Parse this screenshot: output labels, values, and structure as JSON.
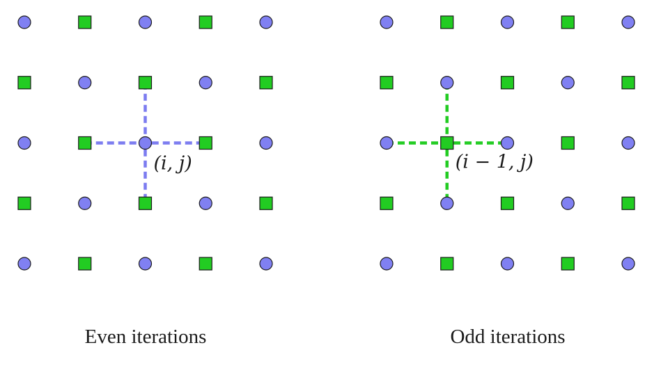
{
  "colors": {
    "circle": "#8080f2",
    "square": "#22cc22",
    "outline": "#1a1a1a",
    "even_stencil": "#7c7cf0",
    "odd_stencil": "#22cc22"
  },
  "panels": [
    {
      "caption": "Even iterations",
      "highlight_label": "(i, j)",
      "grid_size": 5,
      "center_node": {
        "row": 2,
        "col": 2
      },
      "stencil_color_key": "even_stencil",
      "first_cell_shape": "circle"
    },
    {
      "caption": "Odd iterations",
      "highlight_label": "(i − 1, j)",
      "grid_size": 5,
      "center_node": {
        "row": 2,
        "col": 1
      },
      "stencil_color_key": "odd_stencil",
      "first_cell_shape": "circle"
    }
  ]
}
